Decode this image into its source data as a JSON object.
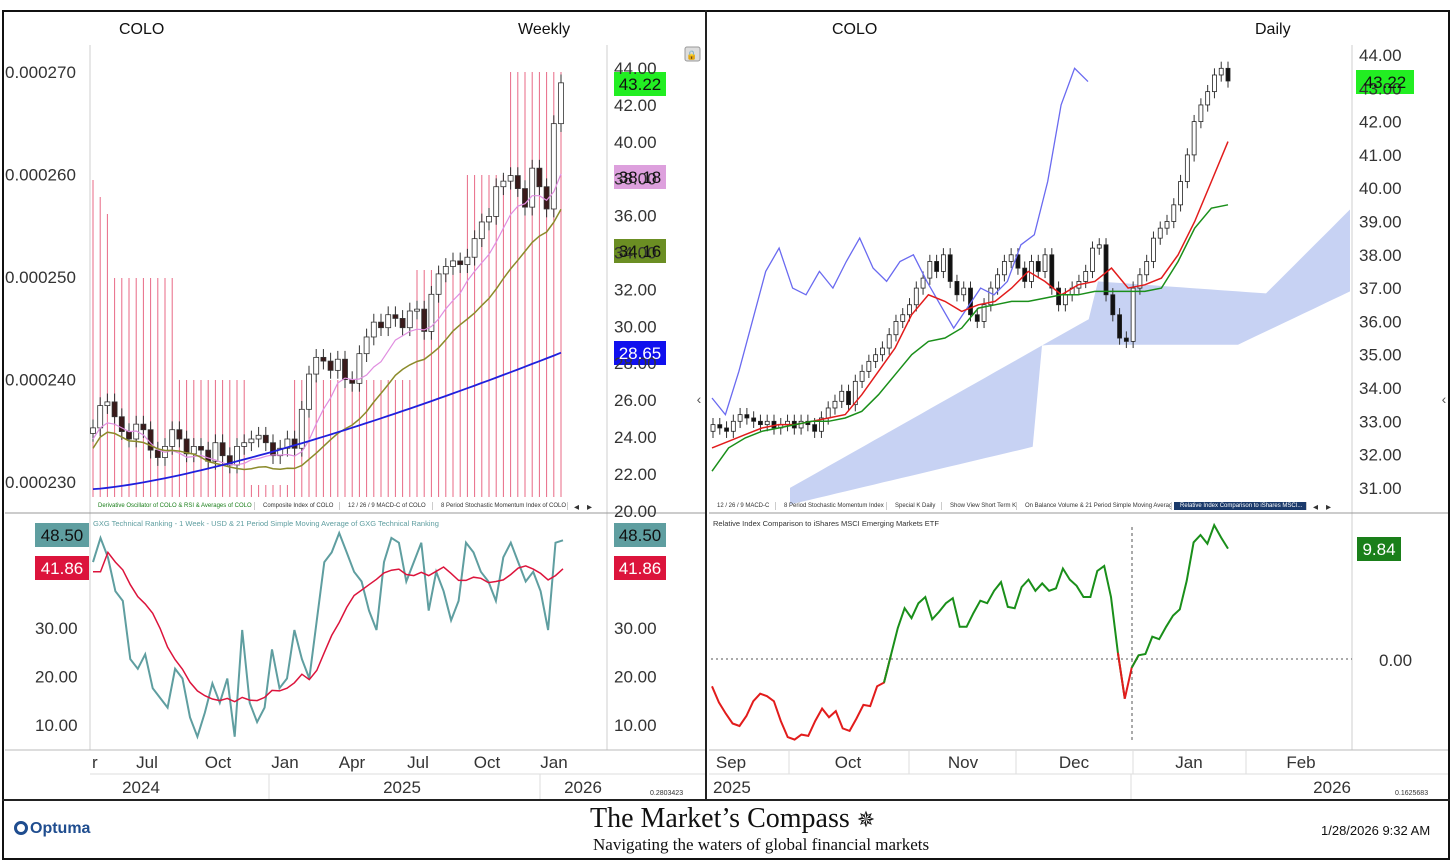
{
  "header": {
    "left_symbol": "COLO",
    "left_period": "Weekly",
    "right_symbol": "COLO",
    "right_period": "Daily"
  },
  "weekly": {
    "left_axis_ticks": [
      "0.000270",
      "0.000260",
      "0.000250",
      "0.000240",
      "0.000230"
    ],
    "right_axis_ticks": [
      "44.00",
      "42.00",
      "40.00",
      "38.00",
      "36.00",
      "34.00",
      "32.00",
      "30.00",
      "28.00",
      "26.00",
      "24.00",
      "22.00",
      "20.00"
    ],
    "badges": [
      {
        "label": "43.22",
        "color": "#22ee22"
      },
      {
        "label": "38.18",
        "color": "#dda0dd"
      },
      {
        "label": "34.16",
        "color": "#6b8e23"
      },
      {
        "label": "28.65",
        "color": "#1010ee"
      }
    ],
    "tabs": [
      "Derivative Oscillator of COLO & RSI & Averages of COLO",
      "Composite Index of COLO",
      "12 / 26 / 9 MACD-C of COLO",
      "8 Period Stochastic Momentum Index of COLO"
    ],
    "ranking_legend": "GXG Technical Ranking - 1 Week - USD & 21 Period Simple Moving Average of GXG Technical Ranking",
    "ranking_ticks": [
      "30.00",
      "20.00",
      "10.00"
    ],
    "ranking_badges": [
      {
        "label": "48.50",
        "color": "#5f9ea0"
      },
      {
        "label": "41.86",
        "color": "#dc143c"
      }
    ],
    "x_months": [
      "r",
      "Jul",
      "Oct",
      "Jan",
      "Apr",
      "Jul",
      "Oct",
      "Jan"
    ],
    "x_years": [
      "2024",
      "2025",
      "2026"
    ],
    "scale_readout": "0.2803423"
  },
  "daily": {
    "right_axis_ticks": [
      "44.00",
      "43.00",
      "42.00",
      "41.00",
      "40.00",
      "39.00",
      "38.00",
      "37.00",
      "36.00",
      "35.00",
      "34.00",
      "33.00",
      "32.00",
      "31.00"
    ],
    "badge": {
      "label": "43.22",
      "color": "#22ee22"
    },
    "tabs": [
      "12 / 26 / 9 MACD-C",
      "8 Period Stochastic Momentum Index",
      "Special K Daily",
      "Show View Short Term KST",
      "On Balance Volume & 21 Period Simple Moving Average",
      "Relative Index Comparison to iShares MSCI..."
    ],
    "relative_legend": "Relative Index Comparison to iShares MSCI Emerging Markets ETF",
    "relative_ticks": [
      "0.00"
    ],
    "relative_badge": {
      "label": "9.84",
      "color": "#1a7f1a"
    },
    "x_months": [
      "Sep",
      "Oct",
      "Nov",
      "Dec",
      "Jan",
      "Feb"
    ],
    "x_years": [
      "2025",
      "2026"
    ],
    "scale_readout": "0.1625683"
  },
  "footer": {
    "brand": "Optuma",
    "title": "The Market’s Compass",
    "subtitle": "Navigating the waters of global financial markets",
    "timestamp": "1/28/2026 9:32 AM"
  },
  "chart_data": [
    {
      "type": "candlestick",
      "title": "COLO Weekly",
      "y_range": [
        20,
        44
      ],
      "last_close": 43.22,
      "ohlc_approx_closes": [
        24.6,
        25.8,
        26.0,
        25.2,
        24.4,
        24.0,
        24.8,
        24.5,
        23.4,
        23.0,
        23.6,
        24.5,
        24.0,
        23.2,
        23.6,
        23.4,
        22.8,
        23.8,
        23.1,
        22.6,
        23.6,
        23.8,
        24.0,
        24.2,
        23.8,
        23.1,
        23.5,
        24.0,
        23.5,
        25.6,
        27.5,
        28.4,
        28.2,
        27.7,
        28.3,
        27.2,
        27.0,
        28.6,
        29.5,
        30.3,
        30.0,
        30.7,
        30.5,
        30.0,
        30.9,
        31.0,
        29.8,
        31.8,
        32.9,
        33.3,
        33.6,
        33.4,
        33.8,
        34.8,
        35.7,
        36.0,
        37.6,
        37.9,
        38.2,
        37.5,
        36.5,
        38.6,
        37.6,
        36.4,
        41.0,
        43.2
      ],
      "series": [
        {
          "name": "Moving Average (pink)",
          "values_range": [
            21.7,
            38.18
          ]
        },
        {
          "name": "Moving Average (olive)",
          "values_range": [
            21.9,
            34.16
          ]
        },
        {
          "name": "Moving Average (blue)",
          "values_range": [
            21.3,
            28.65
          ]
        }
      ]
    },
    {
      "type": "line",
      "title": "GXG Technical Ranking - 1 Week - USD & 21 Period Simple Moving Average of GXG Technical Ranking",
      "y_range": [
        5,
        50
      ],
      "series": [
        {
          "name": "GXG Technical Ranking - 1 Week - USD",
          "last": 48.5
        },
        {
          "name": "21 Period Simple Moving Average of GXG Technical Ranking",
          "last": 41.86
        }
      ]
    },
    {
      "type": "candlestick",
      "title": "COLO Daily",
      "y_range": [
        30.5,
        44.3
      ],
      "last_close": 43.22
    },
    {
      "type": "line",
      "title": "Relative Index Comparison to iShares MSCI Emerging Markets ETF",
      "last": 9.84
    }
  ]
}
